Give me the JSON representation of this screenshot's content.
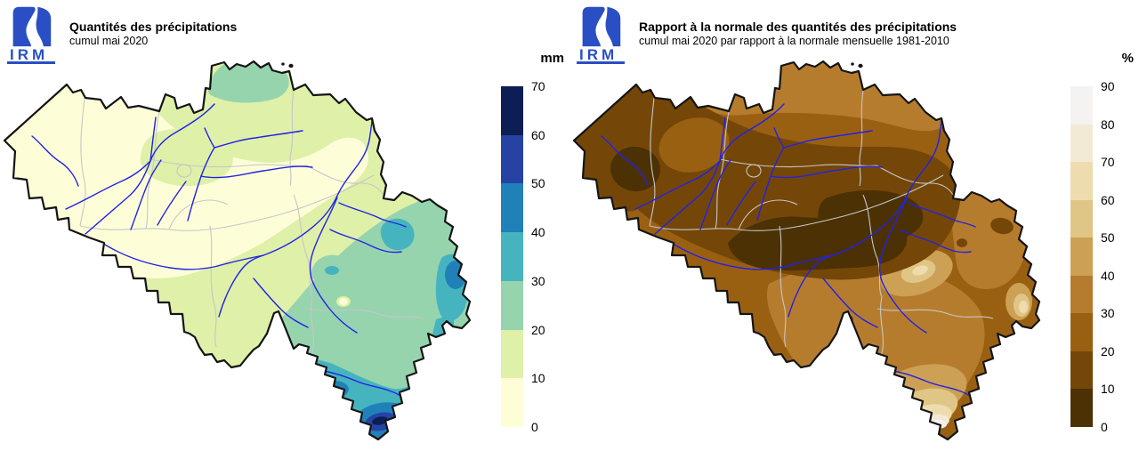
{
  "page": {
    "background": "#FFFFFF"
  },
  "logo": {
    "text": "IRM",
    "color": "#2A4FC4"
  },
  "map_colors": {
    "outline": "#141414",
    "rivers": "#2222E6",
    "province_borders": "#C6C6C6"
  },
  "left_panel": {
    "title": "Quantités des précipitations",
    "subtitle": "cumul mai 2020",
    "legend_unit": "mm",
    "legend_ticks": [
      "0",
      "10",
      "20",
      "30",
      "40",
      "50",
      "60",
      "70"
    ],
    "legend_colors": [
      "#FDFED8",
      "#DFF0A8",
      "#96D4AE",
      "#46B4BF",
      "#2080B8",
      "#2643A3",
      "#0D1E55"
    ]
  },
  "right_panel": {
    "title": "Rapport à la normale des quantités des précipitations",
    "subtitle": "cumul mai 2020 par rapport à la normale mensuelle 1981-2010",
    "legend_unit": "%",
    "legend_ticks": [
      "0",
      "10",
      "20",
      "30",
      "40",
      "50",
      "60",
      "70",
      "80",
      "90"
    ],
    "legend_colors": [
      "#4B3104",
      "#744708",
      "#9A6012",
      "#B67C2E",
      "#CCA055",
      "#E0C686",
      "#EFDCAE",
      "#F2EAD5",
      "#F4F3F1"
    ]
  },
  "chart_data": [
    {
      "type": "heatmap",
      "subtype": "filled-contour-choropleth",
      "region": "Belgium",
      "title": "Quantités des précipitations",
      "subtitle": "cumul mai 2020",
      "unit": "mm",
      "bins": [
        0,
        10,
        20,
        30,
        40,
        50,
        60,
        70
      ],
      "bin_colors": [
        "#FDFED8",
        "#DFF0A8",
        "#96D4AE",
        "#46B4BF",
        "#2080B8",
        "#2643A3",
        "#0D1E55"
      ],
      "legend_position": "right",
      "observations": "0-10 mm over most of central and western Belgium; 10-20 mm along the northern border and centre-south; 20-40 mm over the Ardennes and the east; 40-50 mm spots near Bouillon and the eastern border; local maximum 60-70 mm at the far southern tip (Gaume)."
    },
    {
      "type": "heatmap",
      "subtype": "filled-contour-choropleth",
      "region": "Belgium",
      "title": "Rapport à la normale des quantités des précipitations",
      "subtitle": "cumul mai 2020 par rapport à la normale mensuelle 1981-2010",
      "unit": "%",
      "bins": [
        0,
        10,
        20,
        30,
        40,
        50,
        60,
        70,
        80,
        90
      ],
      "bin_colors": [
        "#4B3104",
        "#744708",
        "#9A6012",
        "#B67C2E",
        "#CCA055",
        "#E0C686",
        "#EFDCAE",
        "#F2EAD5",
        "#F4F3F1"
      ],
      "legend_position": "right",
      "observations": "Most of the country at 10-30% of the 1981-2010 normal; darkest zones (0-10%) over West Flanders and the central belt; ratios rise towards the south-east, reaching 80-90% at the far southern tip."
    }
  ]
}
